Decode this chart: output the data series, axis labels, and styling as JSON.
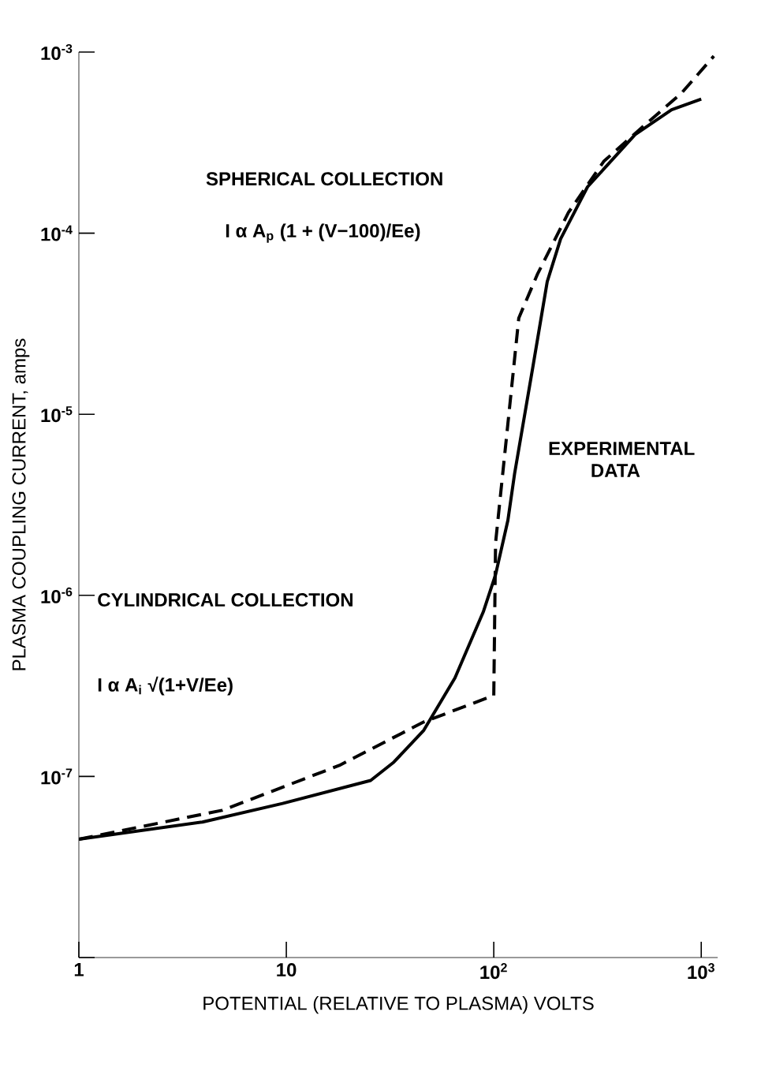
{
  "chart_data": {
    "type": "line",
    "xlabel": "POTENTIAL (RELATIVE TO PLASMA) VOLTS",
    "ylabel": "PLASMA COUPLING CURRENT, amps",
    "log": "xy",
    "xlim": [
      1,
      1200
    ],
    "ylim": [
      1e-08,
      0.001
    ],
    "xticks": [
      1,
      10,
      {
        "value": 100,
        "label": "10$^{2}$"
      },
      {
        "value": 1000,
        "label": "10$^{3}$"
      }
    ],
    "yticks": [
      {
        "value": 1e-08,
        "label": null
      },
      {
        "value": 1e-07,
        "label": "10$^{-7}$"
      },
      {
        "value": 1e-06,
        "label": "10$^{-6}$"
      },
      {
        "value": 1e-05,
        "label": "10$^{-5}$"
      },
      {
        "value": 0.0001,
        "label": "10$^{-4}$"
      },
      {
        "value": 0.001,
        "label": "10$^{-3}$"
      }
    ],
    "grid": false,
    "marker": "none",
    "series": [
      {
        "color": "#000000",
        "line_style": "solid",
        "x": [
          1,
          3.94,
          9.6,
          25.5,
          33,
          46,
          65,
          89,
          102,
          117,
          126,
          154,
          181,
          210,
          283,
          480,
          720,
          1000
        ],
        "values": [
          4.5e-08,
          5.6e-08,
          7.1e-08,
          9.5e-08,
          1.2e-07,
          1.8e-07,
          3.5e-07,
          8.1e-07,
          1.3e-06,
          2.6e-06,
          4.7e-06,
          1.8e-05,
          5.4e-05,
          9.3e-05,
          0.00018,
          0.00035,
          0.00048,
          0.00055
        ]
      },
      {
        "color": "#000000",
        "line_style": "dashed",
        "x": [
          1,
          4.9,
          18,
          46,
          100
        ],
        "values": [
          4.5e-08,
          6.5e-08,
          1.15e-07,
          2e-07,
          2.8e-07
        ]
      },
      {
        "color": "#000000",
        "line_style": "dashed",
        "x": [
          100,
          102,
          117,
          132,
          162,
          229,
          340,
          540,
          800,
          1150
        ],
        "values": [
          2.8e-07,
          1.95e-06,
          8.9e-06,
          3.4e-05,
          5.9e-05,
          0.00013,
          0.00025,
          0.0004,
          0.00059,
          0.00095
        ]
      }
    ],
    "annotations": [
      "SPHERICAL COLLECTION",
      "I α A$_{p}$ (1 + (V−100)/Ee)",
      "CYLINDRICAL COLLECTION",
      "I α A$_{i}$ √(1+V/Ee)",
      "EXPERIMENTAL DATA"
    ]
  }
}
